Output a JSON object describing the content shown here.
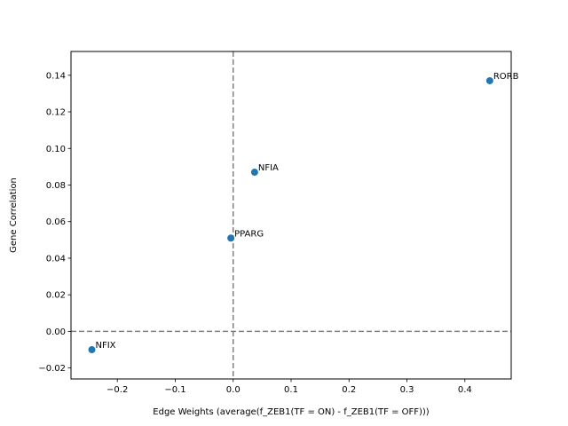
{
  "chart_data": {
    "type": "scatter",
    "title": "",
    "xlabel": "Edge Weights (average(f_ZEB1(TF = ON) - f_ZEB1(TF = OFF)))",
    "ylabel": "Gene Correlation",
    "xlim": [
      -0.28,
      0.48
    ],
    "ylim": [
      -0.026,
      0.153
    ],
    "xticks": [
      -0.2,
      -0.1,
      0.0,
      0.1,
      0.2,
      0.3,
      0.4
    ],
    "xtick_labels": [
      "−0.2",
      "−0.1",
      "0.0",
      "0.1",
      "0.2",
      "0.3",
      "0.4"
    ],
    "yticks": [
      -0.02,
      0.0,
      0.02,
      0.04,
      0.06,
      0.08,
      0.1,
      0.12,
      0.14
    ],
    "ytick_labels": [
      "−0.02",
      "0.00",
      "0.02",
      "0.04",
      "0.06",
      "0.08",
      "0.10",
      "0.12",
      "0.14"
    ],
    "grid": false,
    "reference_lines": [
      {
        "orientation": "vertical",
        "value": 0.0,
        "style": "dashed"
      },
      {
        "orientation": "horizontal",
        "value": 0.0,
        "style": "dashed"
      }
    ],
    "points": [
      {
        "label": "RORB",
        "x": 0.443,
        "y": 0.137
      },
      {
        "label": "NFIA",
        "x": 0.037,
        "y": 0.087
      },
      {
        "label": "PPARG",
        "x": -0.004,
        "y": 0.051
      },
      {
        "label": "NFIX",
        "x": -0.244,
        "y": -0.01
      }
    ],
    "colors": {
      "marker": "#1f77b4",
      "reference_line": "#808080"
    }
  }
}
